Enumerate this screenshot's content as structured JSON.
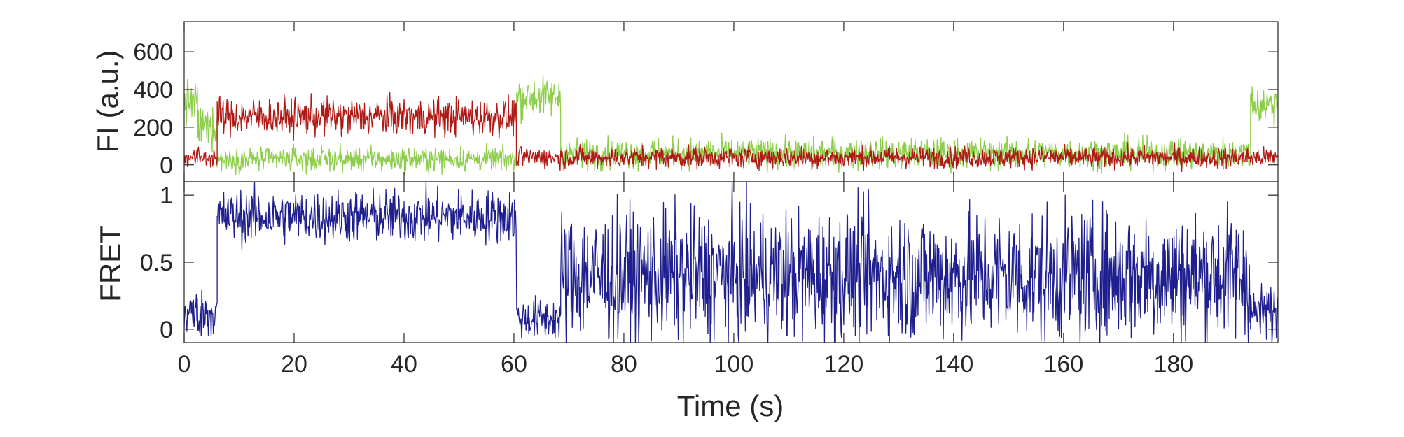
{
  "chart_data": [
    {
      "type": "line",
      "ylabel": "FI (a.u.)",
      "xlabel": "",
      "xlim": [
        0,
        199
      ],
      "ylim": [
        -90,
        760
      ],
      "xticks": [
        0,
        20,
        40,
        60,
        80,
        100,
        120,
        140,
        160,
        180
      ],
      "yticks": [
        0,
        200,
        400,
        600
      ],
      "ytick_labels": [
        "0",
        "200",
        "400",
        "600"
      ],
      "grid": false,
      "series": [
        {
          "color": "#8fce4c",
          "segments": [
            {
              "x_start": 0,
              "x_end": 2.5,
              "mean": 330,
              "noise": 170
            },
            {
              "x_start": 2.5,
              "x_end": 6,
              "mean": 200,
              "noise": 150
            },
            {
              "x_start": 6,
              "x_end": 60.5,
              "mean": 30,
              "noise": 90
            },
            {
              "x_start": 60.5,
              "x_end": 68.5,
              "mean": 360,
              "noise": 150
            },
            {
              "x_start": 68.5,
              "x_end": 194,
              "mean": 60,
              "noise": 115
            },
            {
              "x_start": 194,
              "x_end": 199,
              "mean": 320,
              "noise": 150
            }
          ]
        },
        {
          "color": "#b01a16",
          "segments": [
            {
              "x_start": 0,
              "x_end": 6,
              "mean": 40,
              "noise": 75
            },
            {
              "x_start": 6,
              "x_end": 60.5,
              "mean": 255,
              "noise": 140
            },
            {
              "x_start": 60.5,
              "x_end": 194,
              "mean": 40,
              "noise": 80
            },
            {
              "x_start": 194,
              "x_end": 199,
              "mean": 40,
              "noise": 75
            }
          ]
        }
      ]
    },
    {
      "type": "line",
      "ylabel": "FRET",
      "xlabel": "Time (s)",
      "xlim": [
        0,
        199
      ],
      "ylim": [
        -0.1,
        1.1
      ],
      "xticks": [
        0,
        20,
        40,
        60,
        80,
        100,
        120,
        140,
        160,
        180
      ],
      "xtick_labels": [
        "0",
        "20",
        "40",
        "60",
        "80",
        "100",
        "120",
        "140",
        "160",
        "180"
      ],
      "yticks": [
        0,
        0.5,
        1
      ],
      "ytick_labels": [
        "0",
        "0.5",
        "1"
      ],
      "grid": false,
      "series": [
        {
          "color": "#1f1f8f",
          "segments": [
            {
              "x_start": 0,
              "x_end": 6,
              "mean": 0.12,
              "noise": 0.25
            },
            {
              "x_start": 6,
              "x_end": 60.5,
              "mean": 0.84,
              "noise": 0.28
            },
            {
              "x_start": 60.5,
              "x_end": 68.5,
              "mean": 0.08,
              "noise": 0.22
            },
            {
              "x_start": 68.5,
              "x_end": 194,
              "mean": 0.4,
              "noise": 0.7
            },
            {
              "x_start": 194,
              "x_end": 199,
              "mean": 0.12,
              "noise": 0.3
            }
          ]
        }
      ]
    }
  ]
}
